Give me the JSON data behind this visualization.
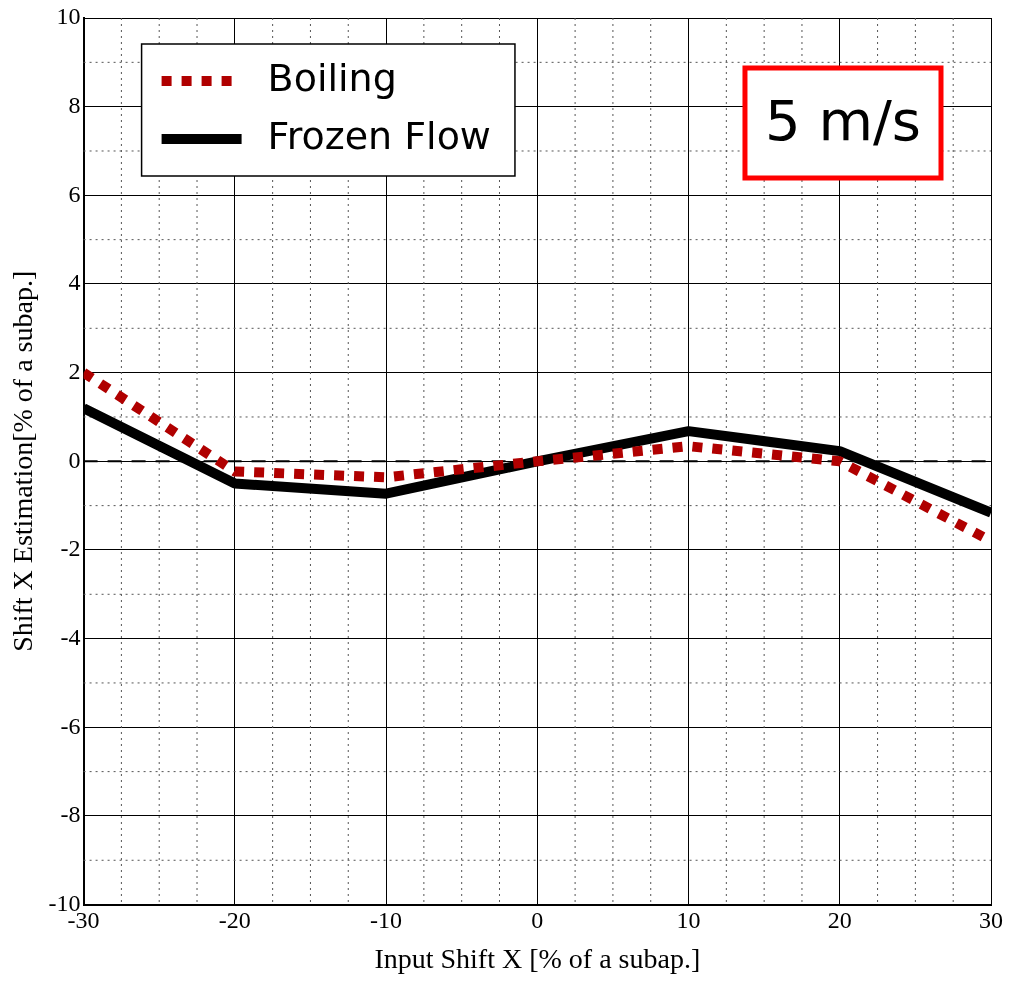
{
  "chart_data": {
    "type": "line",
    "xlabel": "Input Shift X [% of a subap.]",
    "ylabel": "Shift X Estimation[% of a subap.]",
    "x": [
      -30,
      -20,
      -10,
      0,
      10,
      20,
      30
    ],
    "series": [
      {
        "name": "Boiling",
        "color": "#b00000",
        "line_style": "dotted",
        "values": [
          2.0,
          -0.23,
          -0.36,
          0,
          0.34,
          0,
          -1.8
        ]
      },
      {
        "name": "Frozen Flow",
        "color": "#000000",
        "line_style": "solid",
        "values": [
          1.2,
          -0.5,
          -0.73,
          0,
          0.68,
          0.23,
          -1.16
        ]
      }
    ],
    "xlim": [
      -30,
      30
    ],
    "xticks": [
      -30,
      -20,
      -10,
      0,
      10,
      20,
      30
    ],
    "ylim": [
      -10,
      10
    ],
    "yticks": [
      -10,
      -8,
      -6,
      -4,
      -2,
      0,
      2,
      4,
      6,
      8,
      10
    ],
    "ref_lines": [
      {
        "axis": "y",
        "value": 0,
        "color": "#000000",
        "line_style": "dashed"
      }
    ],
    "annotations": [
      "5 m/s"
    ],
    "grid": true,
    "legend": "top left",
    "marker": "none"
  }
}
